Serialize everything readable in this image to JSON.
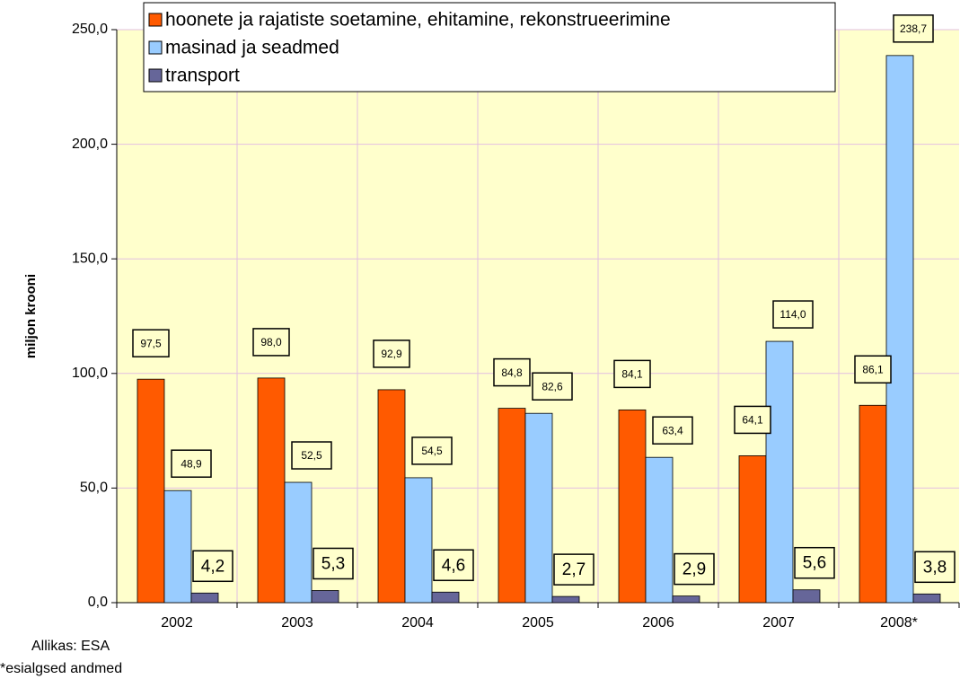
{
  "chart_data": {
    "type": "bar",
    "y_label": "miljon krooni",
    "categories": [
      "2002",
      "2003",
      "2004",
      "2005",
      "2006",
      "2007",
      "2008*"
    ],
    "series": [
      {
        "name": "hoonete ja rajatiste soetamine, ehitamine, rekonstrueerimine",
        "color": "#ff5a00",
        "values": [
          97.5,
          98.0,
          92.9,
          84.8,
          84.1,
          64.1,
          86.1
        ],
        "value_labels": [
          "97,5",
          "98,0",
          "92,9",
          "84,8",
          "84,1",
          "64,1",
          "86,1"
        ]
      },
      {
        "name": "masinad ja seadmed",
        "color": "#99ccff",
        "values": [
          48.9,
          52.5,
          54.5,
          82.6,
          63.4,
          114.0,
          238.7
        ],
        "value_labels": [
          "48,9",
          "52,5",
          "54,5",
          "82,6",
          "63,4",
          "114,0",
          "238,7"
        ]
      },
      {
        "name": "transport",
        "color": "#666699",
        "values": [
          4.2,
          5.3,
          4.6,
          2.7,
          2.9,
          5.6,
          3.8
        ],
        "value_labels": [
          "4,2",
          "5,3",
          "4,6",
          "2,7",
          "2,9",
          "5,6",
          "3,8"
        ]
      }
    ],
    "ylim": [
      0,
      250
    ],
    "yticks": [
      {
        "value": 0,
        "label": "0,0"
      },
      {
        "value": 50,
        "label": "50,0"
      },
      {
        "value": 100,
        "label": "100,0"
      },
      {
        "value": 150,
        "label": "150,0"
      },
      {
        "value": 200,
        "label": "200,0"
      },
      {
        "value": 250,
        "label": "250,0"
      }
    ],
    "grid": true,
    "legend": "top",
    "footnotes": [
      "Allikas: ESA",
      "*esialgsed andmed"
    ]
  }
}
